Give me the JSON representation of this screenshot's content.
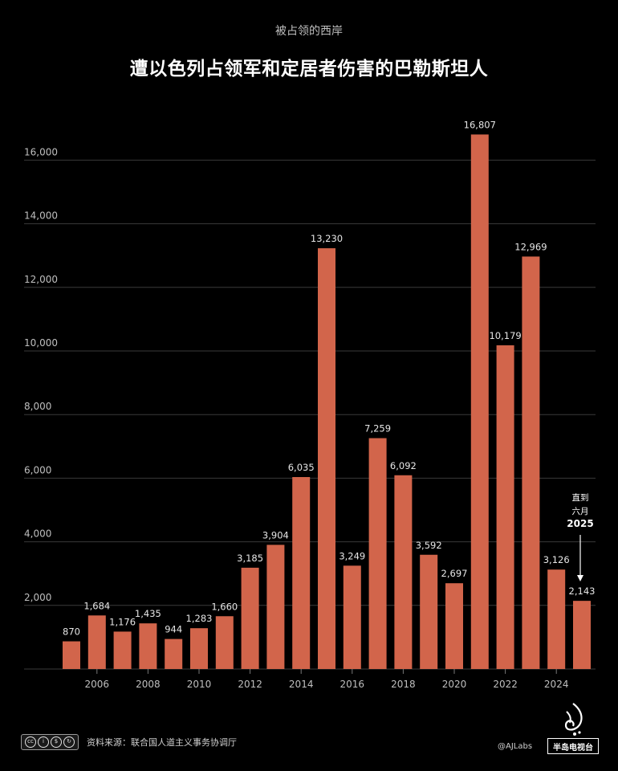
{
  "header": {
    "subtitle": "被占领的西岸",
    "title": "遭以色列占领军和定居者伤害的巴勒斯坦人"
  },
  "chart_data": {
    "type": "bar",
    "categories": [
      "2005",
      "2006",
      "2007",
      "2008",
      "2009",
      "2010",
      "2011",
      "2012",
      "2013",
      "2014",
      "2015",
      "2016",
      "2017",
      "2018",
      "2019",
      "2020",
      "2021",
      "2022",
      "2023",
      "2024",
      "2025"
    ],
    "values": [
      870,
      1684,
      1176,
      1435,
      944,
      1283,
      1660,
      3185,
      3904,
      6035,
      13230,
      3249,
      7259,
      6092,
      3592,
      2697,
      16807,
      10179,
      12969,
      3126,
      2143
    ],
    "value_labels": [
      "870",
      "1,684",
      "1,176",
      "1,435",
      "944",
      "1,283",
      "1,660",
      "3,185",
      "3,904",
      "6,035",
      "13,230",
      "3,249",
      "7,259",
      "6,092",
      "3,592",
      "2,697",
      "16,807",
      "10,179",
      "12,969",
      "3,126",
      "2,143"
    ],
    "x_tick_labels": [
      "2006",
      "2008",
      "2010",
      "2012",
      "2014",
      "2016",
      "2018",
      "2020",
      "2022",
      "2024"
    ],
    "y_ticks": [
      2000,
      4000,
      6000,
      8000,
      10000,
      12000,
      14000,
      16000
    ],
    "y_tick_labels": [
      "2,000",
      "4,000",
      "6,000",
      "8,000",
      "10,000",
      "12,000",
      "14,000",
      "16,000"
    ],
    "ylim": [
      0,
      17500
    ],
    "grid": true,
    "bar_color": "#d2654b",
    "annotation": {
      "lines": [
        "直到",
        "六月",
        "2025"
      ],
      "target_category": "2025"
    }
  },
  "footer": {
    "license_icons": [
      "cc-icon",
      "by-icon",
      "nc-icon",
      "sa-icon"
    ],
    "license_labels": [
      "BY",
      "NC",
      "SA"
    ],
    "source": "资料来源：联合国人道主义事务协调厅",
    "handle": "@AJLabs",
    "brand": "半岛电视台"
  },
  "colors": {
    "background": "#000000",
    "bar": "#d2654b",
    "grid": "#3a3a3a",
    "text": "#ffffff",
    "muted": "#bfbfbf"
  }
}
